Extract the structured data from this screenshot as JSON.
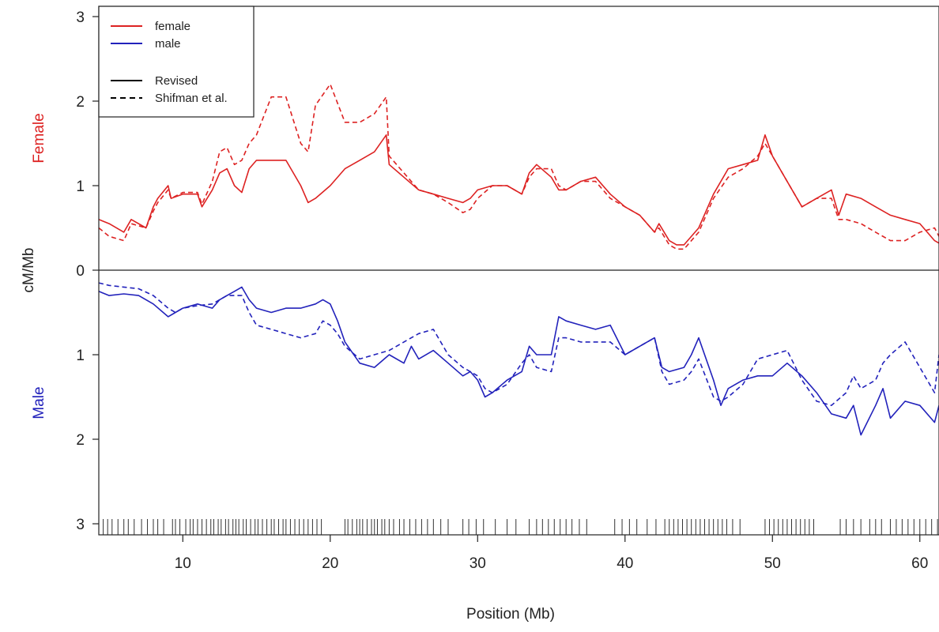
{
  "chart_data": {
    "type": "line",
    "xlabel": "Position (Mb)",
    "ylabel": "cM/Mb",
    "xlim": [
      4.3,
      61.3
    ],
    "xticks": [
      10,
      20,
      30,
      40,
      50,
      60
    ],
    "panels": {
      "female": {
        "label": "Female",
        "color": "#dd2222",
        "ylim": [
          0,
          3
        ],
        "yticks": [
          0,
          1,
          2,
          3
        ]
      },
      "male": {
        "label": "Male",
        "color": "#2222bb",
        "ylim": [
          0,
          3
        ],
        "yticks": [
          0,
          1,
          2,
          3
        ],
        "direction": "downward"
      }
    },
    "legend": {
      "position": "top-left",
      "items": [
        {
          "label": "female",
          "color": "#dd2222",
          "style": "solid"
        },
        {
          "label": "male",
          "color": "#2222bb",
          "style": "solid"
        },
        {
          "label": "Revised",
          "color": "#000000",
          "style": "solid"
        },
        {
          "label": "Shifman et al.",
          "color": "#000000",
          "style": "dashed"
        }
      ]
    },
    "series": [
      {
        "panel": "female",
        "style": "solid",
        "x": [
          4.3,
          5,
          6,
          6.5,
          7.5,
          8,
          8.3,
          9,
          9.2,
          10,
          11,
          11.3,
          12,
          12.5,
          13,
          13.5,
          14,
          14.5,
          15,
          16,
          17,
          18,
          18.5,
          19,
          20,
          21,
          22,
          23,
          23.8,
          24,
          25,
          26,
          27,
          28,
          29,
          29.5,
          30,
          31,
          32,
          33,
          33.5,
          34,
          35,
          35.5,
          36,
          37,
          38,
          39,
          40,
          41,
          42,
          42.3,
          43,
          43.5,
          44,
          45,
          46,
          47,
          48,
          49,
          49.5,
          50,
          51,
          52,
          53,
          54,
          54.5,
          55,
          56,
          57,
          58,
          59,
          60,
          61,
          61.3
        ],
        "y": [
          0.6,
          0.55,
          0.45,
          0.6,
          0.5,
          0.75,
          0.85,
          1.0,
          0.85,
          0.9,
          0.9,
          0.75,
          0.95,
          1.15,
          1.2,
          1.0,
          0.92,
          1.2,
          1.3,
          1.3,
          1.3,
          1.0,
          0.8,
          0.85,
          1.0,
          1.2,
          1.3,
          1.4,
          1.6,
          1.25,
          1.1,
          0.95,
          0.9,
          0.85,
          0.8,
          0.85,
          0.95,
          1.0,
          1.0,
          0.9,
          1.15,
          1.25,
          1.1,
          0.95,
          0.95,
          1.05,
          1.1,
          0.9,
          0.75,
          0.65,
          0.45,
          0.55,
          0.35,
          0.3,
          0.3,
          0.5,
          0.9,
          1.2,
          1.25,
          1.3,
          1.6,
          1.35,
          1.05,
          0.75,
          0.85,
          0.95,
          0.65,
          0.9,
          0.85,
          0.75,
          0.65,
          0.6,
          0.55,
          0.35,
          0.32
        ]
      },
      {
        "panel": "female",
        "style": "dashed",
        "x": [
          4.3,
          5,
          6,
          6.5,
          7.5,
          8,
          8.3,
          9,
          9.2,
          10,
          11,
          11.3,
          12,
          12.5,
          13,
          13.5,
          14,
          14.5,
          15,
          16,
          17,
          18,
          18.5,
          19,
          20,
          21,
          22,
          23,
          23.8,
          24,
          25,
          26,
          27,
          28,
          29,
          29.5,
          30,
          31,
          32,
          33,
          33.5,
          34,
          35,
          35.5,
          36,
          37,
          38,
          39,
          40,
          41,
          42,
          42.3,
          43,
          43.5,
          44,
          45,
          46,
          47,
          48,
          49,
          49.5,
          50,
          51,
          52,
          53,
          54,
          54.5,
          55,
          56,
          57,
          58,
          59,
          60,
          61,
          61.3
        ],
        "y": [
          0.5,
          0.4,
          0.35,
          0.55,
          0.5,
          0.7,
          0.8,
          0.95,
          0.85,
          0.92,
          0.92,
          0.78,
          1.05,
          1.4,
          1.45,
          1.25,
          1.3,
          1.5,
          1.6,
          2.05,
          2.05,
          1.5,
          1.4,
          1.95,
          2.2,
          1.75,
          1.75,
          1.85,
          2.05,
          1.35,
          1.15,
          0.95,
          0.9,
          0.8,
          0.68,
          0.72,
          0.85,
          1.0,
          1.0,
          0.9,
          1.1,
          1.2,
          1.2,
          1.0,
          0.95,
          1.05,
          1.05,
          0.85,
          0.75,
          0.65,
          0.45,
          0.5,
          0.3,
          0.25,
          0.25,
          0.45,
          0.85,
          1.1,
          1.2,
          1.35,
          1.5,
          1.35,
          1.05,
          0.75,
          0.85,
          0.85,
          0.6,
          0.6,
          0.55,
          0.45,
          0.35,
          0.35,
          0.45,
          0.5,
          0.4
        ]
      },
      {
        "panel": "male",
        "style": "solid",
        "x": [
          4.3,
          5,
          6,
          7,
          8,
          9,
          9.5,
          10,
          11,
          12,
          12.5,
          13,
          13.5,
          14,
          14.5,
          15,
          16,
          17,
          18,
          19,
          19.5,
          20,
          20.5,
          21,
          22,
          23,
          24,
          25,
          25.5,
          26,
          27,
          28,
          29,
          29.5,
          30,
          30.5,
          31,
          32,
          33,
          33.5,
          34,
          35,
          35.5,
          36,
          37,
          38,
          39,
          40,
          41,
          42,
          42.5,
          43,
          44,
          44.5,
          45,
          46,
          46.5,
          47,
          48,
          49,
          50,
          51,
          52,
          53,
          54,
          55,
          55.5,
          56,
          57,
          57.5,
          58,
          59,
          60,
          61,
          61.3
        ],
        "y": [
          0.25,
          0.3,
          0.28,
          0.3,
          0.4,
          0.55,
          0.5,
          0.45,
          0.4,
          0.45,
          0.35,
          0.3,
          0.25,
          0.2,
          0.35,
          0.45,
          0.5,
          0.45,
          0.45,
          0.4,
          0.35,
          0.4,
          0.6,
          0.85,
          1.1,
          1.15,
          1.0,
          1.1,
          0.9,
          1.05,
          0.95,
          1.1,
          1.25,
          1.2,
          1.3,
          1.5,
          1.45,
          1.3,
          1.2,
          0.9,
          1.0,
          1.0,
          0.55,
          0.6,
          0.65,
          0.7,
          0.65,
          1.0,
          0.9,
          0.8,
          1.15,
          1.2,
          1.15,
          1.0,
          0.8,
          1.3,
          1.6,
          1.4,
          1.3,
          1.25,
          1.25,
          1.1,
          1.25,
          1.45,
          1.7,
          1.75,
          1.6,
          1.95,
          1.6,
          1.4,
          1.75,
          1.55,
          1.6,
          1.8,
          1.6
        ]
      },
      {
        "panel": "male",
        "style": "dashed",
        "x": [
          4.3,
          5,
          6,
          7,
          8,
          9,
          9.5,
          10,
          11,
          12,
          12.5,
          13,
          13.5,
          14,
          14.5,
          15,
          16,
          17,
          18,
          19,
          19.5,
          20,
          20.5,
          21,
          22,
          23,
          24,
          25,
          25.5,
          26,
          27,
          28,
          29,
          29.5,
          30,
          30.5,
          31,
          32,
          33,
          33.5,
          34,
          35,
          35.5,
          36,
          37,
          38,
          39,
          40,
          41,
          42,
          42.5,
          43,
          44,
          44.5,
          45,
          46,
          46.5,
          47,
          48,
          49,
          50,
          51,
          52,
          53,
          54,
          55,
          55.5,
          56,
          57,
          57.5,
          58,
          59,
          60,
          61,
          61.3
        ],
        "y": [
          0.15,
          0.18,
          0.2,
          0.22,
          0.3,
          0.45,
          0.5,
          0.45,
          0.42,
          0.4,
          0.35,
          0.3,
          0.3,
          0.3,
          0.5,
          0.65,
          0.7,
          0.75,
          0.8,
          0.75,
          0.6,
          0.65,
          0.75,
          0.9,
          1.05,
          1.0,
          0.95,
          0.85,
          0.8,
          0.75,
          0.7,
          1.0,
          1.15,
          1.2,
          1.25,
          1.4,
          1.45,
          1.35,
          1.1,
          1.0,
          1.15,
          1.2,
          0.8,
          0.8,
          0.85,
          0.85,
          0.85,
          1.0,
          0.9,
          0.8,
          1.2,
          1.35,
          1.3,
          1.2,
          1.05,
          1.5,
          1.55,
          1.5,
          1.35,
          1.05,
          1.0,
          0.95,
          1.3,
          1.55,
          1.6,
          1.45,
          1.25,
          1.4,
          1.3,
          1.1,
          1.0,
          0.85,
          1.15,
          1.45,
          1.0
        ]
      }
    ],
    "markers": {
      "description": "rug",
      "x": [
        4.6,
        4.9,
        5.2,
        5.6,
        6.0,
        6.3,
        6.7,
        7.2,
        7.6,
        8.0,
        8.3,
        8.7,
        9.3,
        9.5,
        9.8,
        10.2,
        10.5,
        10.7,
        11.0,
        11.3,
        11.6,
        11.9,
        12.1,
        12.4,
        12.6,
        12.9,
        13.1,
        13.4,
        13.6,
        13.8,
        14.1,
        14.3,
        14.6,
        14.9,
        15.1,
        15.4,
        15.7,
        16.0,
        16.2,
        16.5,
        16.8,
        17.0,
        17.3,
        17.6,
        17.9,
        18.2,
        18.5,
        18.8,
        19.1,
        19.4,
        21.0,
        21.2,
        21.5,
        21.8,
        22.0,
        22.2,
        22.5,
        22.8,
        23.0,
        23.2,
        23.5,
        23.7,
        24.0,
        24.3,
        24.7,
        25.0,
        25.4,
        25.8,
        26.2,
        26.6,
        27.0,
        27.5,
        28.0,
        29.0,
        29.4,
        29.9,
        30.4,
        31.2,
        32.0,
        32.6,
        33.5,
        34.0,
        34.4,
        34.8,
        35.2,
        35.6,
        36.0,
        36.4,
        36.9,
        37.4,
        39.3,
        39.8,
        40.3,
        40.8,
        41.5,
        42.1,
        42.7,
        43.0,
        43.3,
        43.6,
        43.9,
        44.2,
        44.5,
        44.8,
        45.1,
        45.4,
        45.7,
        46.0,
        46.3,
        46.6,
        46.9,
        47.3,
        47.8,
        49.5,
        49.8,
        50.1,
        50.4,
        50.7,
        51.0,
        51.3,
        51.6,
        51.9,
        52.2,
        52.5,
        52.8,
        54.6,
        55.0,
        55.5,
        56.0,
        56.6,
        57.0,
        57.4,
        58.0,
        58.4,
        58.8,
        59.2,
        59.6,
        60.0,
        60.4,
        60.8,
        61.2
      ]
    }
  }
}
